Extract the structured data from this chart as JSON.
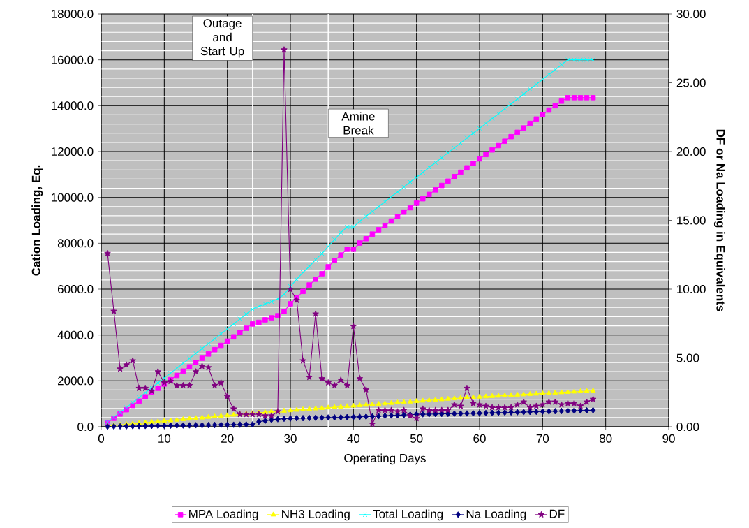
{
  "chart_data": {
    "type": "line",
    "xlabel": "Operating Days",
    "ylabel": "Cation Loading, Eq.",
    "y2label": "DF or Na Loading in Equivalents",
    "x": [
      1,
      2,
      3,
      4,
      5,
      6,
      7,
      8,
      9,
      10,
      11,
      12,
      13,
      14,
      15,
      16,
      17,
      18,
      19,
      20,
      21,
      22,
      23,
      24,
      25,
      26,
      27,
      28,
      29,
      30,
      31,
      32,
      33,
      34,
      35,
      36,
      37,
      38,
      39,
      40,
      41,
      42,
      43,
      44,
      45,
      46,
      47,
      48,
      49,
      50,
      51,
      52,
      53,
      54,
      55,
      56,
      57,
      58,
      59,
      60,
      61,
      62,
      63,
      64,
      65,
      66,
      67,
      68,
      69,
      70,
      71,
      72,
      73,
      74,
      75,
      76,
      77,
      78
    ],
    "series": [
      {
        "name": "MPA Loading",
        "color": "#ff00ff",
        "marker": "square",
        "values": [
          180,
          367,
          554,
          741,
          928,
          1115,
          1302,
          1489,
          1676,
          1863,
          2050,
          2237,
          2424,
          2611,
          2798,
          2985,
          3172,
          3359,
          3546,
          3733,
          3920,
          4107,
          4294,
          4480,
          4550,
          4660,
          4750,
          4840,
          5030,
          5360,
          5630,
          5900,
          6180,
          6430,
          6670,
          6975,
          7250,
          7490,
          7740,
          7740,
          8010,
          8200,
          8400,
          8590,
          8780,
          8970,
          9170,
          9360,
          9550,
          9750,
          9940,
          10130,
          10330,
          10520,
          10710,
          10910,
          11100,
          11290,
          11490,
          11680,
          11870,
          12070,
          12260,
          12450,
          12650,
          12840,
          13030,
          13230,
          13420,
          13610,
          13810,
          14000,
          14200,
          14350,
          14350,
          14350,
          14350,
          14350
        ]
      },
      {
        "name": "NH3 Loading",
        "color": "#ffff00",
        "marker": "triangle",
        "values": [
          30,
          54,
          79,
          103,
          127,
          152,
          176,
          200,
          224,
          249,
          273,
          297,
          322,
          346,
          370,
          394,
          419,
          443,
          467,
          492,
          516,
          540,
          565,
          590,
          610,
          630,
          650,
          670,
          690,
          710,
          730,
          750,
          770,
          790,
          810,
          830,
          850,
          870,
          890,
          910,
          930,
          950,
          970,
          990,
          1010,
          1030,
          1050,
          1070,
          1090,
          1110,
          1130,
          1150,
          1170,
          1190,
          1210,
          1230,
          1250,
          1270,
          1280,
          1300,
          1315,
          1330,
          1345,
          1360,
          1375,
          1390,
          1405,
          1420,
          1435,
          1450,
          1465,
          1480,
          1495,
          1510,
          1525,
          1540,
          1555,
          1570
        ]
      },
      {
        "name": "Total Loading",
        "color": "#00ffff",
        "marker": "cross",
        "values": [
          200,
          414,
          628,
          842,
          1056,
          1270,
          1484,
          1698,
          1912,
          2126,
          2340,
          2554,
          2768,
          2982,
          3196,
          3410,
          3624,
          3838,
          4052,
          4266,
          4480,
          4694,
          4908,
          5120,
          5250,
          5350,
          5450,
          5570,
          5770,
          6120,
          6430,
          6730,
          6990,
          7280,
          7550,
          7860,
          8160,
          8470,
          8710,
          8710,
          8960,
          9170,
          9390,
          9600,
          9810,
          10030,
          10240,
          10450,
          10670,
          10880,
          11090,
          11310,
          11520,
          11730,
          11950,
          12160,
          12370,
          12590,
          12800,
          13010,
          13230,
          13440,
          13650,
          13870,
          14080,
          14290,
          14510,
          14720,
          14930,
          15150,
          15360,
          15570,
          15790,
          16000,
          16000,
          16000,
          16000,
          16000
        ]
      },
      {
        "name": "Na Loading",
        "color": "#000080",
        "marker": "diamond",
        "values": [
          10,
          14,
          18,
          22,
          26,
          30,
          33,
          37,
          41,
          45,
          49,
          53,
          57,
          61,
          65,
          69,
          72,
          76,
          80,
          84,
          88,
          92,
          96,
          100,
          220,
          260,
          300,
          330,
          350,
          360,
          370,
          375,
          380,
          390,
          395,
          400,
          405,
          410,
          420,
          425,
          430,
          440,
          450,
          460,
          475,
          490,
          500,
          510,
          525,
          540,
          545,
          550,
          555,
          560,
          565,
          570,
          575,
          580,
          585,
          590,
          597,
          604,
          612,
          619,
          626,
          633,
          640,
          648,
          655,
          662,
          669,
          676,
          684,
          691,
          698,
          705,
          712,
          720
        ]
      },
      {
        "name": "DF",
        "color": "#800080",
        "marker": "star",
        "axis": "y2",
        "values": [
          12.6,
          8.4,
          4.2,
          4.5,
          4.8,
          2.8,
          2.8,
          2.6,
          4.0,
          3.2,
          3.3,
          3.0,
          3.0,
          3.0,
          4.0,
          4.4,
          4.3,
          3.0,
          3.2,
          2.2,
          1.3,
          0.9,
          0.9,
          0.9,
          0.9,
          0.8,
          0.8,
          1.1,
          27.4,
          10.0,
          9.2,
          4.8,
          3.6,
          8.2,
          3.5,
          3.2,
          3.0,
          3.4,
          3.0,
          7.3,
          3.5,
          2.7,
          0.2,
          1.2,
          1.2,
          1.2,
          1.1,
          1.2,
          0.8,
          0.6,
          1.3,
          1.2,
          1.2,
          1.2,
          1.2,
          1.6,
          1.5,
          2.8,
          1.7,
          1.6,
          1.5,
          1.4,
          1.4,
          1.4,
          1.4,
          1.6,
          1.8,
          1.4,
          1.5,
          1.6,
          1.8,
          1.8,
          1.6,
          1.7,
          1.7,
          1.5,
          1.8,
          2.0
        ]
      }
    ],
    "xlim": [
      0,
      90
    ],
    "xticks": [
      0,
      10,
      20,
      30,
      40,
      50,
      60,
      70,
      80,
      90
    ],
    "ylim": [
      0,
      18000
    ],
    "yticks": [
      {
        "value": 0,
        "label": "0.0"
      },
      {
        "value": 2000,
        "label": "2000.0"
      },
      {
        "value": 4000,
        "label": "4000.0"
      },
      {
        "value": 6000,
        "label": "6000.0"
      },
      {
        "value": 8000,
        "label": "8000.0"
      },
      {
        "value": 10000,
        "label": "10000.0"
      },
      {
        "value": 12000,
        "label": "12000.0"
      },
      {
        "value": 14000,
        "label": "14000.0"
      },
      {
        "value": 16000,
        "label": "16000.0"
      },
      {
        "value": 18000,
        "label": "18000.0"
      }
    ],
    "y2lim": [
      0,
      30
    ],
    "y2ticks": [
      {
        "value": 0,
        "label": "0.00"
      },
      {
        "value": 5,
        "label": "5.00"
      },
      {
        "value": 10,
        "label": "10.00"
      },
      {
        "value": 15,
        "label": "15.00"
      },
      {
        "value": 20,
        "label": "20.00"
      },
      {
        "value": 25,
        "label": "25.00"
      },
      {
        "value": 30,
        "label": "30.00"
      }
    ],
    "ref_lines": [
      {
        "axis": "x",
        "value": 24,
        "label": "Outage and Start Up",
        "color": "#ffffff"
      },
      {
        "axis": "x",
        "value": 36,
        "label": "Amine Break",
        "color": "#ffffff"
      }
    ],
    "grid": true,
    "legend": "bottom",
    "line_style": "solid"
  }
}
